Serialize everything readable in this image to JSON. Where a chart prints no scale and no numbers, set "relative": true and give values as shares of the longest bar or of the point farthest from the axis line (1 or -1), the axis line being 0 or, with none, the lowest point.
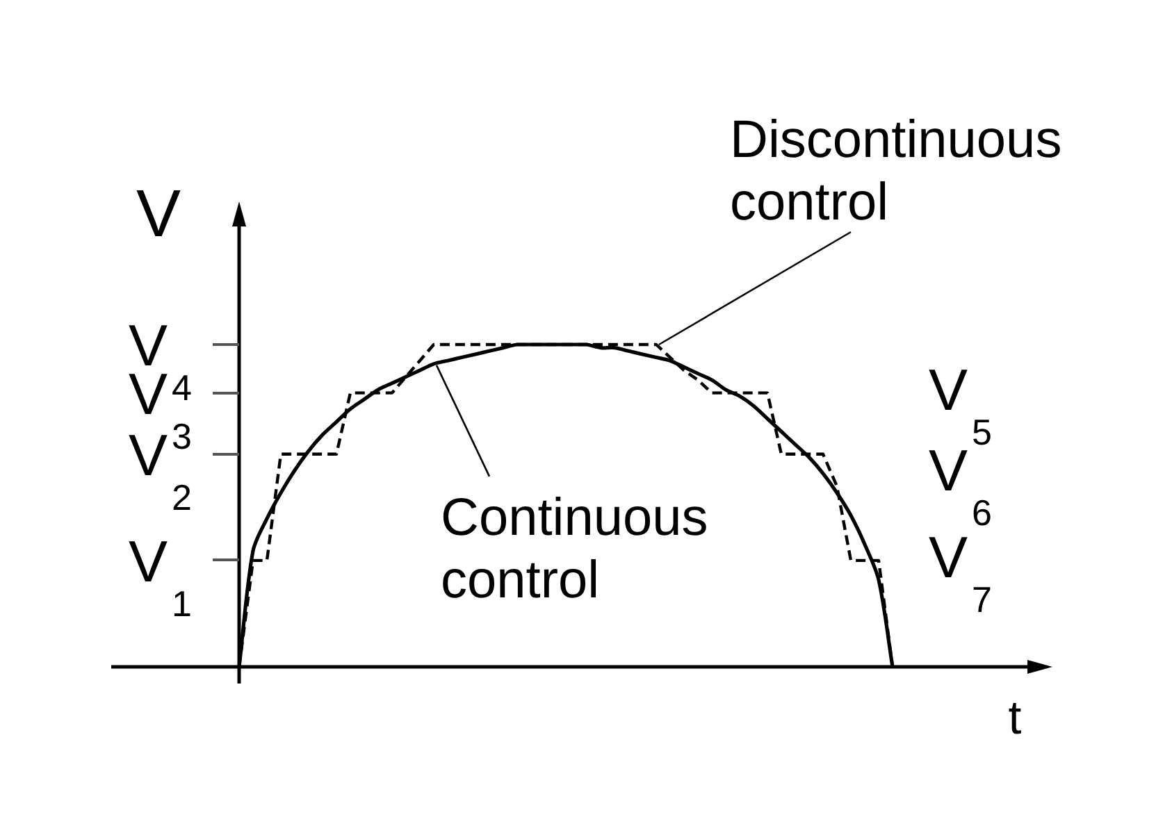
{
  "chart_data": {
    "type": "line",
    "xlabel": "t",
    "ylabel": "V",
    "relative": true,
    "marker": "none",
    "categories": [
      null,
      null,
      null,
      null,
      null,
      null,
      null,
      null,
      null,
      null,
      null,
      null,
      null,
      null,
      null,
      null,
      null,
      null,
      null,
      null,
      null,
      null,
      null,
      null,
      null,
      null,
      null,
      null,
      null,
      null,
      null,
      null,
      null,
      null,
      null,
      null,
      null,
      null,
      null,
      null,
      null,
      null,
      null,
      null,
      null,
      null,
      null,
      null,
      null,
      null,
      null,
      null,
      null,
      null,
      null,
      null,
      null,
      null,
      null,
      null,
      null,
      null,
      null,
      null,
      null,
      null,
      null,
      null,
      null
    ],
    "series": [
      {
        "name": "Continuous control",
        "color": "#000000",
        "line_style": "solid",
        "values": [
          null,
          null,
          null,
          null,
          null,
          null,
          null,
          null,
          null,
          0,
          0.36,
          0.46,
          0.54,
          0.61,
          0.67,
          0.72,
          0.76,
          0.8,
          0.83,
          0.86,
          0.88,
          0.9,
          0.92,
          0.94,
          0.95,
          0.96,
          0.97,
          0.98,
          0.99,
          1,
          1,
          1,
          1,
          1,
          1,
          0.99,
          0.99,
          0.98,
          0.97,
          0.96,
          0.95,
          0.93,
          0.91,
          0.89,
          0.86,
          0.84,
          0.81,
          0.77,
          0.73,
          0.69,
          0.65,
          0.6,
          0.54,
          0.47,
          0.38,
          0.27,
          0,
          null,
          null,
          null,
          null,
          null,
          null,
          null,
          null,
          null,
          null,
          null,
          null
        ]
      },
      {
        "name": "Discontinuous control",
        "color": "#000000",
        "line_style": "dashed",
        "values": [
          null,
          null,
          null,
          null,
          null,
          null,
          null,
          null,
          null,
          0,
          0.33,
          0.33,
          0.66,
          0.66,
          0.66,
          0.66,
          0.66,
          0.85,
          0.85,
          0.85,
          0.85,
          0.9,
          0.95,
          1,
          1,
          1,
          1,
          1,
          1,
          1,
          1,
          1,
          1,
          1,
          1,
          1,
          1,
          1,
          1,
          1,
          0.96,
          0.92,
          0.89,
          0.85,
          0.85,
          0.85,
          0.85,
          0.85,
          0.66,
          0.66,
          0.66,
          0.66,
          0.56,
          0.33,
          0.33,
          0.33,
          0,
          null,
          null,
          null,
          null,
          null,
          null,
          null,
          null,
          null,
          null,
          null,
          null
        ]
      }
    ],
    "annotations": [
      "V$_{4}$",
      "V$_{3}$",
      "V$_{2}$",
      "V$_{1}$",
      "V$_{5}$",
      "V$_{6}$",
      "V$_{7}$"
    ]
  }
}
